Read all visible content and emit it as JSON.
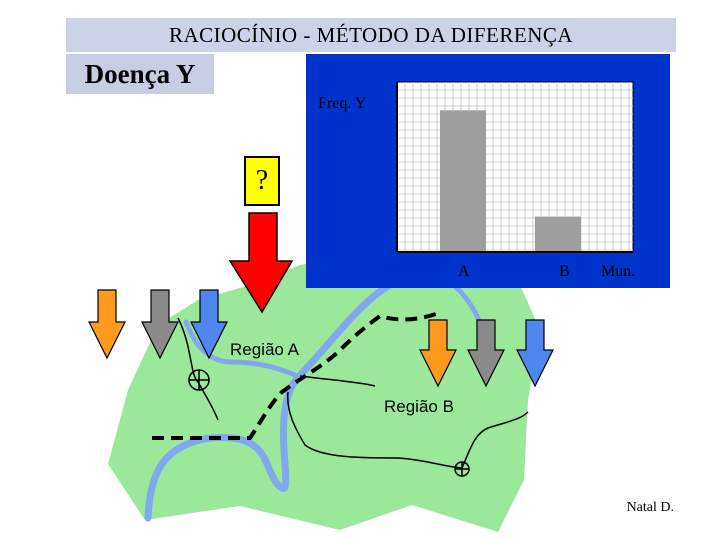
{
  "header": {
    "title": "RACIOCÍNIO -  MÉTODO DA DIFERENÇA"
  },
  "disease_label": "Doença Y",
  "question_mark": "?",
  "chart_data": {
    "type": "bar",
    "ylabel": "Freq. Y",
    "xlabel": "Mun.",
    "categories": [
      "A",
      "B"
    ],
    "values": [
      100,
      25
    ],
    "ylim": [
      0,
      120
    ],
    "grid": true,
    "colors": {
      "panel": "#0033cc",
      "plot": "#ffffff",
      "grid": "#c0c0c0",
      "bar": "#9e9e9e"
    }
  },
  "map": {
    "region_a": "Região  A",
    "region_b": "Região B",
    "colors": {
      "land": "#9be89b",
      "river": "#7fa8ee",
      "border": "#000000"
    }
  },
  "arrows": {
    "colors": {
      "orange": "#ff9a1f",
      "gray": "#8a8a8a",
      "blue": "#4f86f0",
      "red": "#ff0000"
    }
  },
  "credit": "Natal D."
}
